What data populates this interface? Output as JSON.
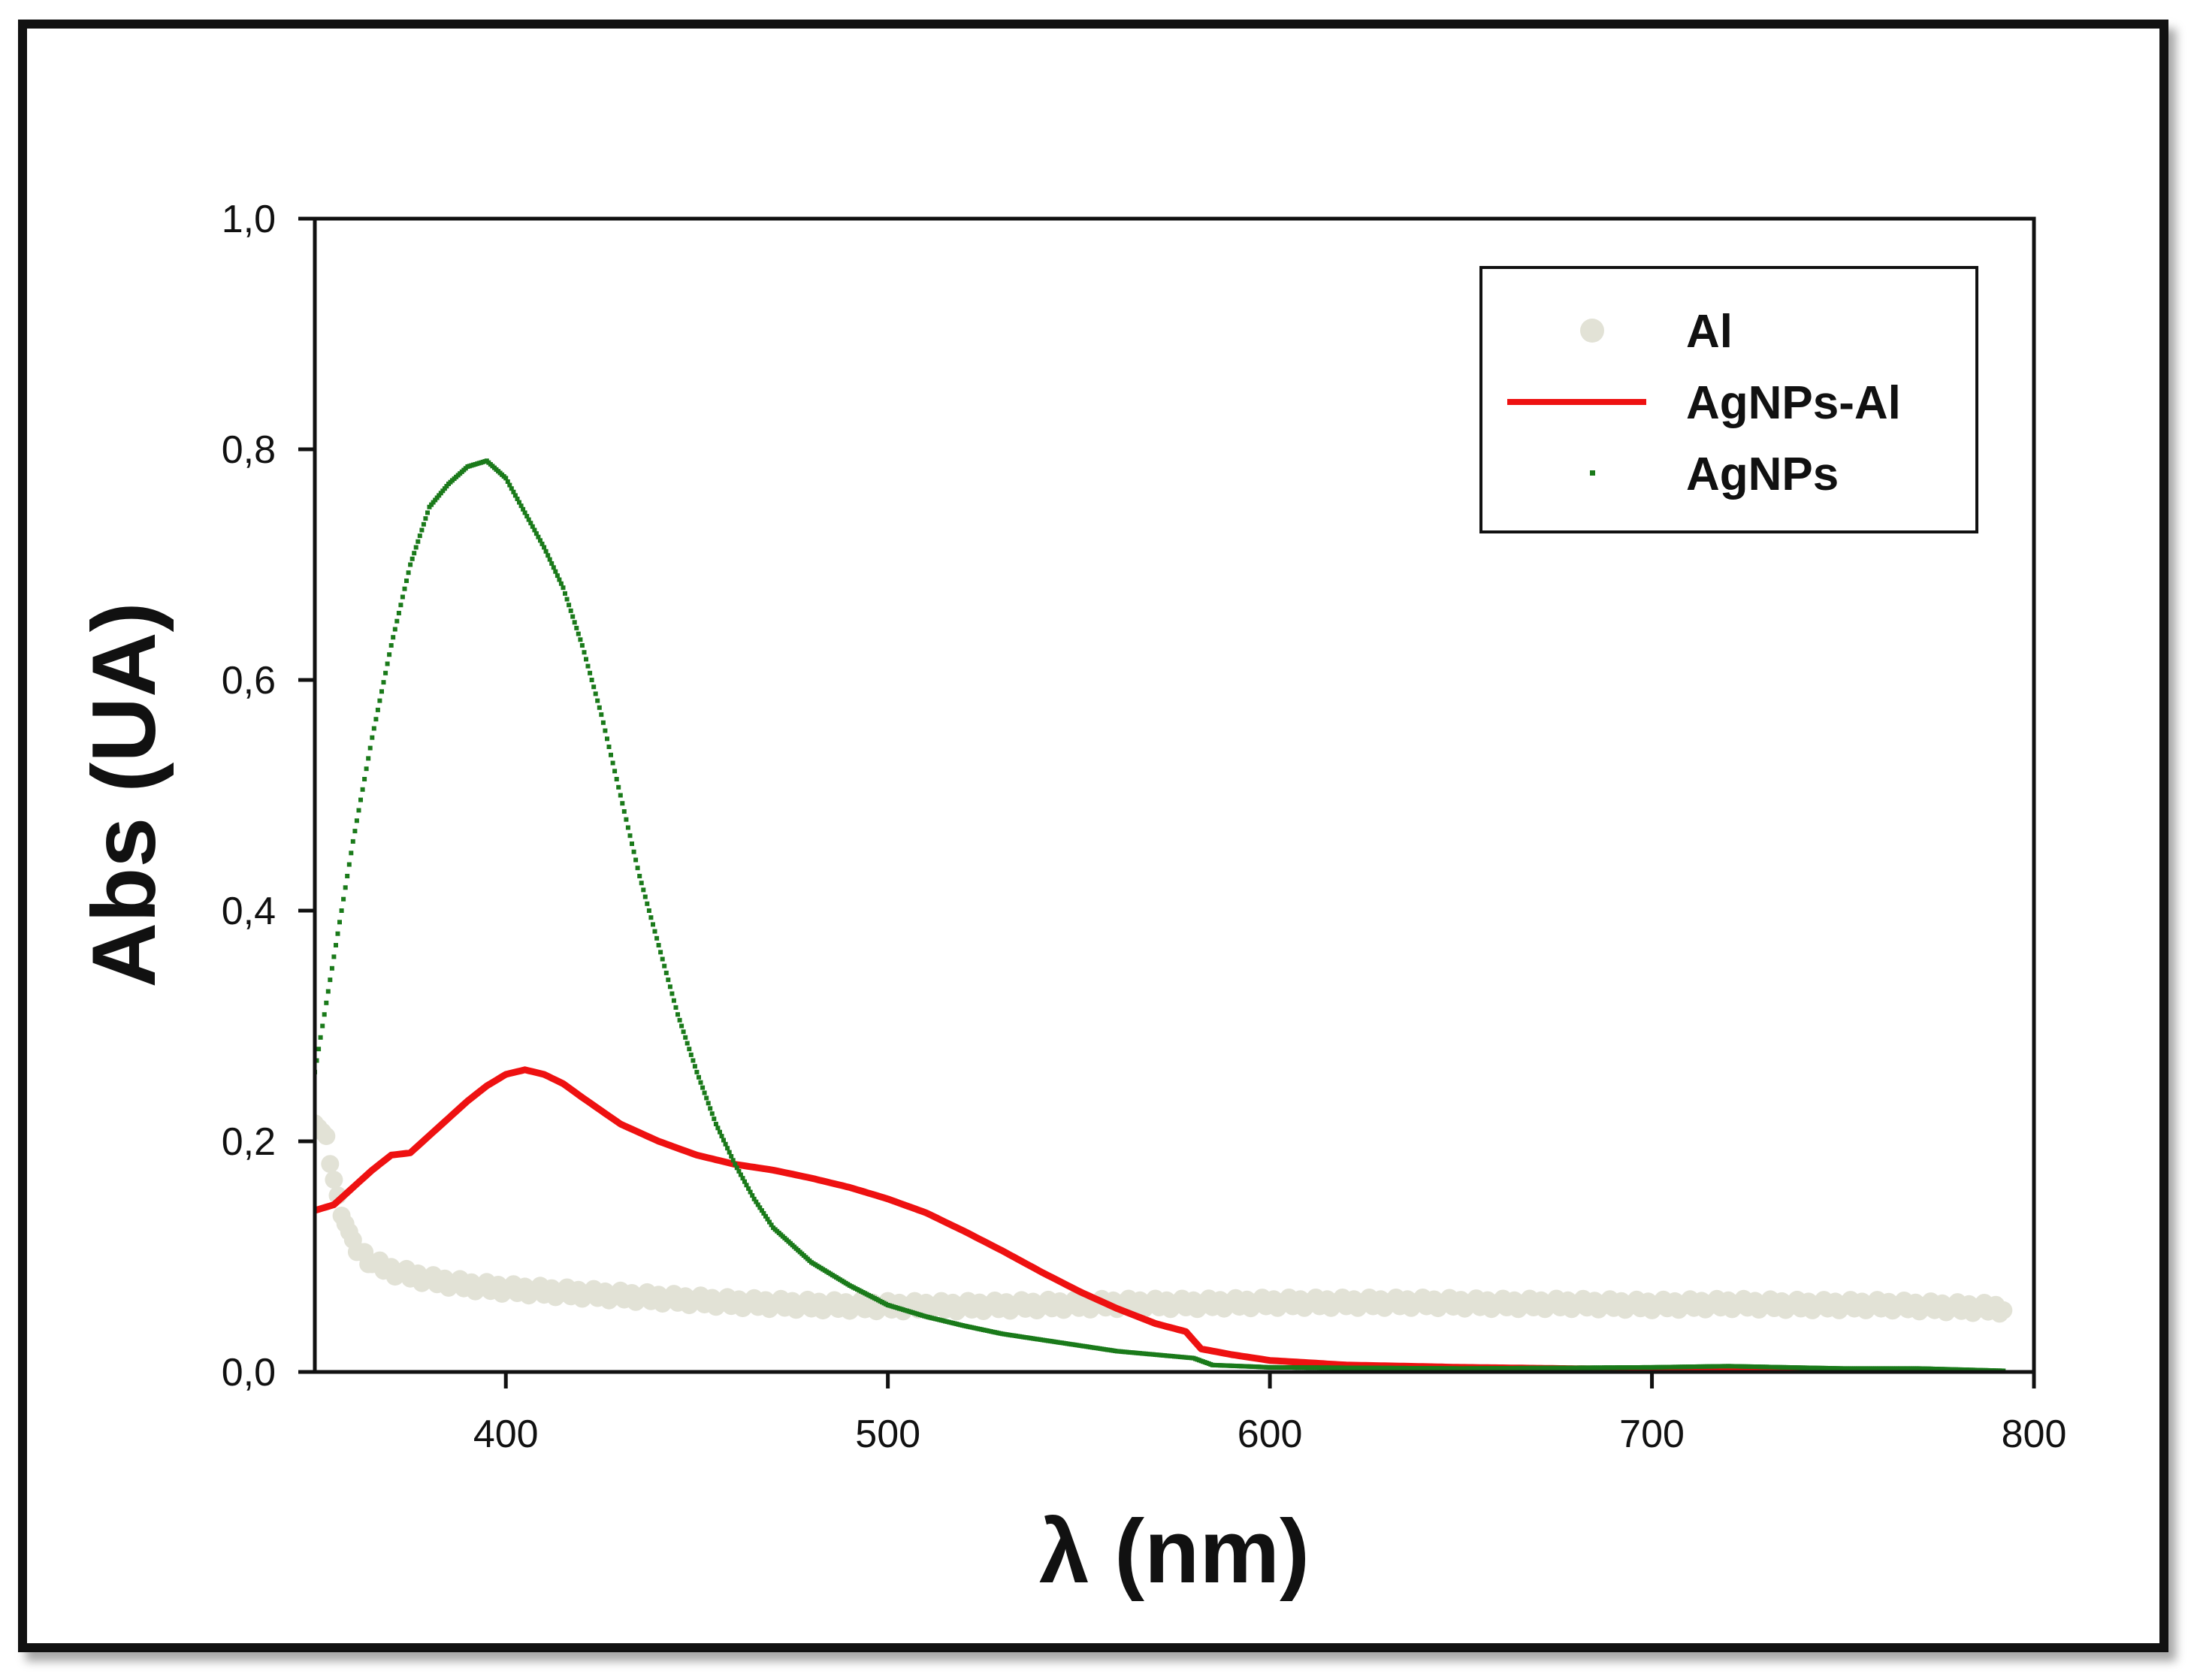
{
  "chart_data": {
    "type": "line",
    "title": "",
    "xlabel": "λ (nm)",
    "ylabel": "Abs (UA)",
    "xlim": [
      350,
      800
    ],
    "ylim": [
      0.0,
      1.0
    ],
    "x_ticks": [
      400,
      500,
      600,
      700,
      800
    ],
    "x_tick_labels": [
      "400",
      "500",
      "600",
      "700",
      "800"
    ],
    "y_ticks": [
      0.0,
      0.2,
      0.4,
      0.6,
      0.8,
      1.0
    ],
    "y_tick_labels": [
      "0,0",
      "0,2",
      "0,4",
      "0,6",
      "0,8",
      "1,0"
    ],
    "legend_position": "top-right",
    "series": [
      {
        "name": "Al",
        "style": "dots",
        "color": "#e2e2d6",
        "points": [
          [
            350,
            0.22
          ],
          [
            353,
            0.2
          ],
          [
            356,
            0.15
          ],
          [
            360,
            0.11
          ],
          [
            365,
            0.095
          ],
          [
            370,
            0.088
          ],
          [
            380,
            0.08
          ],
          [
            390,
            0.075
          ],
          [
            400,
            0.072
          ],
          [
            420,
            0.068
          ],
          [
            440,
            0.064
          ],
          [
            460,
            0.06
          ],
          [
            480,
            0.058
          ],
          [
            500,
            0.057
          ],
          [
            520,
            0.057
          ],
          [
            540,
            0.058
          ],
          [
            560,
            0.059
          ],
          [
            580,
            0.059
          ],
          [
            600,
            0.06
          ],
          [
            620,
            0.06
          ],
          [
            640,
            0.06
          ],
          [
            660,
            0.059
          ],
          [
            680,
            0.059
          ],
          [
            700,
            0.058
          ],
          [
            720,
            0.059
          ],
          [
            740,
            0.058
          ],
          [
            760,
            0.058
          ],
          [
            780,
            0.056
          ],
          [
            792,
            0.055
          ]
        ]
      },
      {
        "name": "AgNPs-Al",
        "style": "line",
        "color": "#ee1111",
        "points": [
          [
            350,
            0.14
          ],
          [
            355,
            0.145
          ],
          [
            360,
            0.16
          ],
          [
            365,
            0.175
          ],
          [
            370,
            0.188
          ],
          [
            375,
            0.19
          ],
          [
            380,
            0.205
          ],
          [
            385,
            0.22
          ],
          [
            390,
            0.235
          ],
          [
            395,
            0.248
          ],
          [
            400,
            0.258
          ],
          [
            405,
            0.262
          ],
          [
            410,
            0.258
          ],
          [
            415,
            0.25
          ],
          [
            420,
            0.238
          ],
          [
            430,
            0.215
          ],
          [
            440,
            0.2
          ],
          [
            450,
            0.188
          ],
          [
            460,
            0.18
          ],
          [
            470,
            0.175
          ],
          [
            480,
            0.168
          ],
          [
            490,
            0.16
          ],
          [
            500,
            0.15
          ],
          [
            510,
            0.138
          ],
          [
            520,
            0.122
          ],
          [
            530,
            0.105
          ],
          [
            540,
            0.087
          ],
          [
            550,
            0.07
          ],
          [
            560,
            0.055
          ],
          [
            570,
            0.042
          ],
          [
            578,
            0.035
          ],
          [
            582,
            0.02
          ],
          [
            590,
            0.015
          ],
          [
            600,
            0.01
          ],
          [
            620,
            0.006
          ],
          [
            650,
            0.004
          ],
          [
            700,
            0.002
          ],
          [
            750,
            0.001
          ],
          [
            770,
            0.0
          ]
        ]
      },
      {
        "name": "AgNPs",
        "style": "dotted-line",
        "color": "#1a7a1a",
        "points": [
          [
            350,
            0.26
          ],
          [
            355,
            0.36
          ],
          [
            360,
            0.46
          ],
          [
            365,
            0.55
          ],
          [
            370,
            0.63
          ],
          [
            375,
            0.7
          ],
          [
            380,
            0.75
          ],
          [
            385,
            0.77
          ],
          [
            390,
            0.785
          ],
          [
            395,
            0.79
          ],
          [
            400,
            0.775
          ],
          [
            405,
            0.745
          ],
          [
            410,
            0.715
          ],
          [
            415,
            0.68
          ],
          [
            420,
            0.63
          ],
          [
            425,
            0.57
          ],
          [
            430,
            0.5
          ],
          [
            435,
            0.43
          ],
          [
            440,
            0.37
          ],
          [
            445,
            0.31
          ],
          [
            450,
            0.26
          ],
          [
            455,
            0.215
          ],
          [
            460,
            0.18
          ],
          [
            465,
            0.15
          ],
          [
            470,
            0.125
          ],
          [
            480,
            0.095
          ],
          [
            490,
            0.075
          ],
          [
            500,
            0.058
          ],
          [
            510,
            0.048
          ],
          [
            520,
            0.04
          ],
          [
            530,
            0.033
          ],
          [
            540,
            0.028
          ],
          [
            550,
            0.023
          ],
          [
            560,
            0.018
          ],
          [
            570,
            0.015
          ],
          [
            580,
            0.012
          ],
          [
            585,
            0.006
          ],
          [
            600,
            0.004
          ],
          [
            650,
            0.003
          ],
          [
            700,
            0.004
          ],
          [
            720,
            0.005
          ],
          [
            750,
            0.003
          ],
          [
            770,
            0.003
          ],
          [
            792,
            0.001
          ]
        ]
      }
    ]
  }
}
